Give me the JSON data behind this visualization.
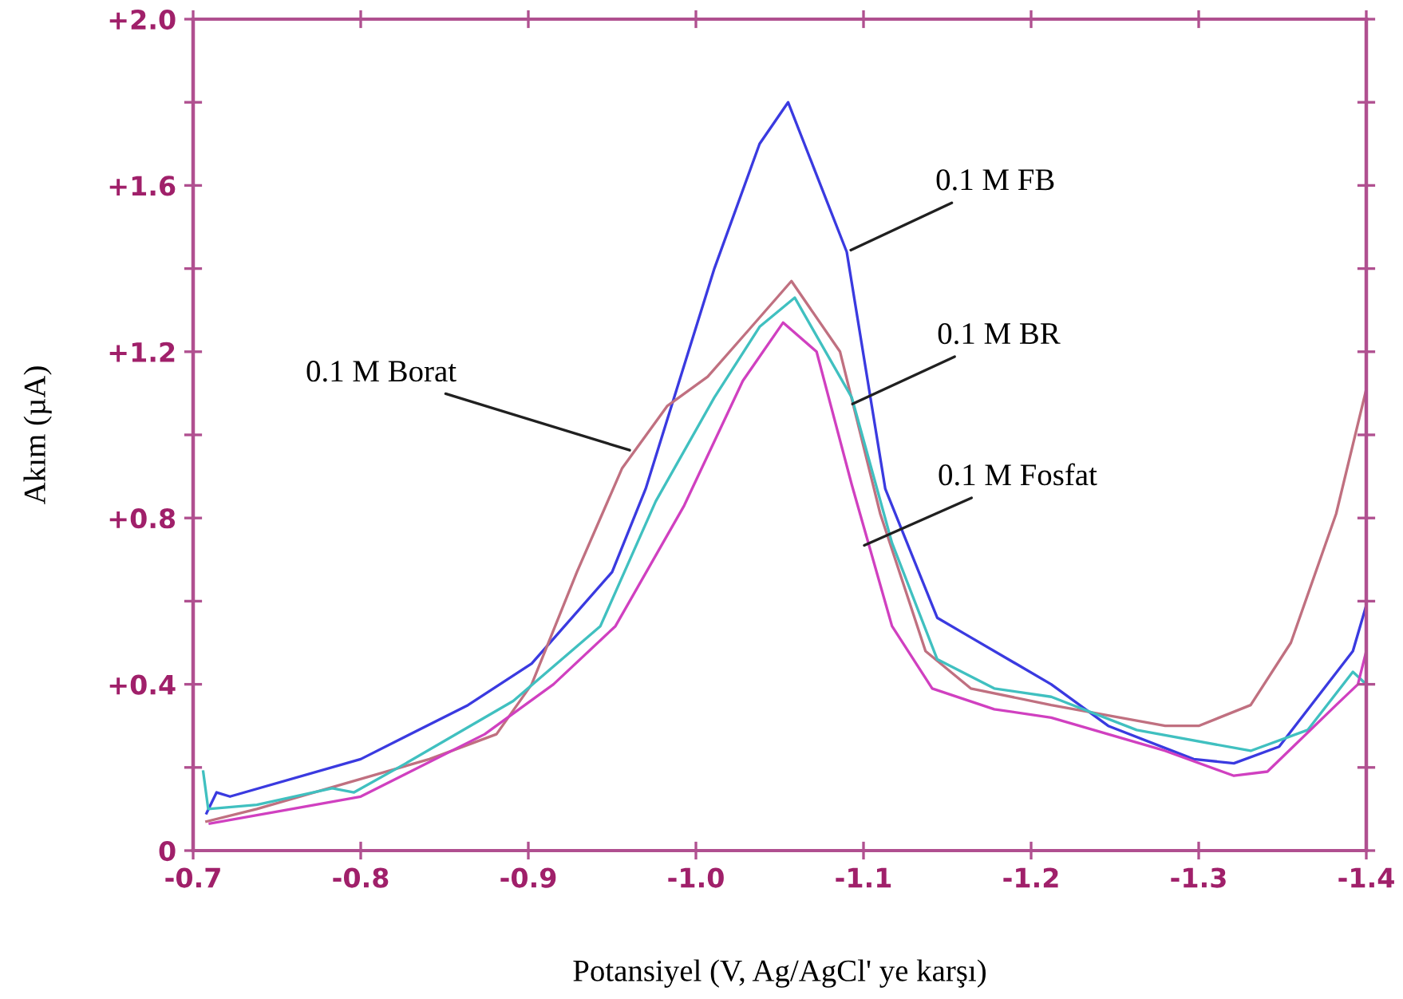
{
  "chart_data": {
    "type": "line",
    "xlabel": "Potansiyel (V, Ag/AgCl' ye karşı)",
    "ylabel": "Akım (µA)",
    "xlim": [
      -0.7,
      -1.4
    ],
    "ylim": [
      0,
      2.0
    ],
    "xticks": [
      -0.7,
      -0.8,
      -0.9,
      {
        "value": -1.0,
        "label": "-1.0"
      },
      {
        "value": -1.1,
        "label": "-1.1"
      },
      -1.2,
      -1.3,
      -1.4
    ],
    "yticks": [
      0,
      {
        "value": 0.2,
        "label": null
      },
      {
        "value": 0.4,
        "label": "+0.4"
      },
      {
        "value": 0.6,
        "label": null
      },
      {
        "value": 0.8,
        "label": "+0.8"
      },
      {
        "value": 1.0,
        "label": null
      },
      {
        "value": 1.2,
        "label": "+1.2"
      },
      {
        "value": 1.4,
        "label": null
      },
      {
        "value": 1.6,
        "label": "+1.6"
      },
      {
        "value": 1.8,
        "label": null
      },
      {
        "value": 2.0,
        "label": "+2.0"
      }
    ],
    "grid": false,
    "legend": false,
    "marker": "none",
    "line_style": "solid",
    "series": [
      {
        "color": "#3a3ae0",
        "x": [
          -0.708,
          -0.714,
          -0.722,
          -0.8,
          -0.864,
          -0.902,
          -0.95,
          -0.97,
          -1.011,
          -1.038,
          -1.055,
          -1.09,
          -1.113,
          -1.144,
          -1.161,
          -1.212,
          -1.246,
          -1.297,
          -1.321,
          -1.348,
          -1.392,
          -1.4
        ],
        "values": [
          0.09,
          0.14,
          0.13,
          0.22,
          0.35,
          0.45,
          0.67,
          0.87,
          1.4,
          1.7,
          1.8,
          1.44,
          0.87,
          0.56,
          0.52,
          0.4,
          0.3,
          0.22,
          0.21,
          0.25,
          0.48,
          0.59
        ]
      },
      {
        "color": "#c07080",
        "x": [
          -0.708,
          -0.738,
          -0.841,
          -0.881,
          -0.902,
          -0.929,
          -0.956,
          -0.983,
          -1.007,
          -1.031,
          -1.057,
          -1.086,
          -1.11,
          -1.137,
          -1.164,
          -1.212,
          -1.28,
          -1.3,
          -1.331,
          -1.355,
          -1.382,
          -1.4
        ],
        "values": [
          0.07,
          0.1,
          0.22,
          0.28,
          0.4,
          0.67,
          0.92,
          1.07,
          1.14,
          1.25,
          1.37,
          1.2,
          0.81,
          0.48,
          0.39,
          0.35,
          0.3,
          0.3,
          0.35,
          0.5,
          0.81,
          1.11
        ]
      },
      {
        "color": "#40c0c0",
        "x": [
          -0.706,
          -0.709,
          -0.738,
          -0.783,
          -0.796,
          -0.827,
          -0.891,
          -0.943,
          -0.976,
          -1.011,
          -1.038,
          -1.059,
          -1.093,
          -1.117,
          -1.144,
          -1.178,
          -1.212,
          -1.263,
          -1.331,
          -1.365,
          -1.392,
          -1.4
        ],
        "values": [
          0.19,
          0.1,
          0.11,
          0.15,
          0.14,
          0.21,
          0.36,
          0.54,
          0.84,
          1.09,
          1.26,
          1.33,
          1.09,
          0.74,
          0.46,
          0.39,
          0.37,
          0.29,
          0.24,
          0.29,
          0.43,
          0.4
        ]
      },
      {
        "color": "#d040c0",
        "x": [
          -0.71,
          -0.738,
          -0.8,
          -0.874,
          -0.915,
          -0.952,
          -0.993,
          -1.028,
          -1.052,
          -1.072,
          -1.093,
          -1.117,
          -1.141,
          -1.178,
          -1.212,
          -1.28,
          -1.321,
          -1.341,
          -1.382,
          -1.395,
          -1.4
        ],
        "values": [
          0.065,
          0.085,
          0.13,
          0.28,
          0.4,
          0.54,
          0.83,
          1.13,
          1.27,
          1.2,
          0.88,
          0.54,
          0.39,
          0.34,
          0.32,
          0.24,
          0.18,
          0.19,
          0.35,
          0.4,
          0.48
        ]
      }
    ],
    "annotations": [
      {
        "text": "0.1 M FB",
        "x": -1.09,
        "y": 1.44
      },
      {
        "text": "0.1 M Borat",
        "x": -0.963,
        "y": 0.96
      },
      {
        "text": "0.1 M BR",
        "x": -1.091,
        "y": 1.07
      },
      {
        "text": "0.1 M Fosfat",
        "x": -1.098,
        "y": 0.73
      }
    ]
  }
}
